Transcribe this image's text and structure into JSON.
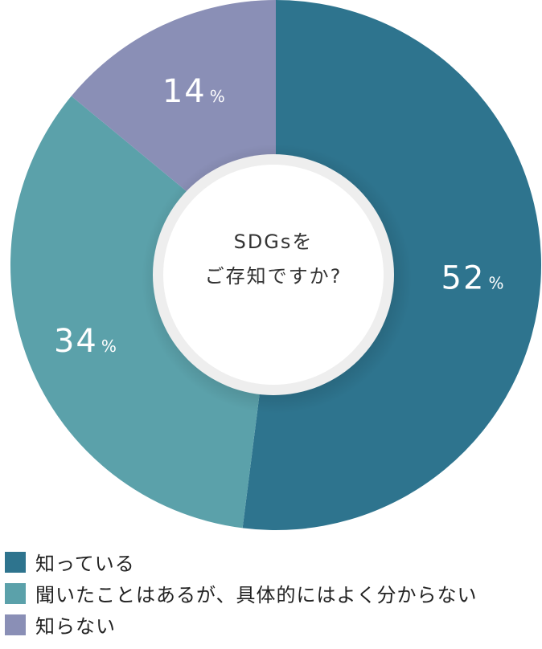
{
  "chart_data": {
    "type": "pie",
    "style": "donut",
    "center_label": [
      "SDGsを",
      "ご存知ですか?"
    ],
    "percent_sign": "%",
    "slices": [
      {
        "label": "知っている",
        "value": 52,
        "color": "#2e748e"
      },
      {
        "label": "聞いたことはあるが、具体的にはよく分からない",
        "value": 34,
        "color": "#5ba1aa"
      },
      {
        "label": "知らない",
        "value": 14,
        "color": "#8a8fb6"
      }
    ],
    "legend_placement": "bottom"
  }
}
